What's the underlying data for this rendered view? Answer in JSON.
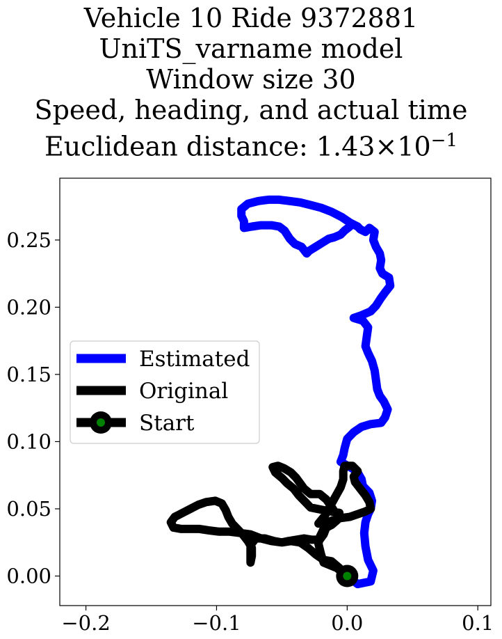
{
  "chart_data": {
    "type": "line",
    "title_lines": [
      "Vehicle 10 Ride 9372881",
      "UniTS_varname model",
      "Window size 30",
      "Speed, heading, and actual time"
    ],
    "title_metric_label": "Euclidean distance: ",
    "title_metric_mantissa": "1.43",
    "title_metric_times": "×",
    "title_metric_base": "10",
    "title_metric_exponent": "−1",
    "xlabel": "",
    "ylabel": "",
    "xlim": [
      -0.22,
      0.11
    ],
    "ylim": [
      -0.022,
      0.296
    ],
    "grid": false,
    "legend_position": "center-left",
    "x_ticks": [
      -0.2,
      -0.1,
      0.0,
      0.1
    ],
    "x_tick_labels": [
      "−0.2",
      "−0.1",
      "0.0",
      "0.1"
    ],
    "y_ticks": [
      0.0,
      0.05,
      0.1,
      0.15,
      0.2,
      0.25
    ],
    "y_tick_labels": [
      "0.00",
      "0.05",
      "0.10",
      "0.15",
      "0.20",
      "0.25"
    ],
    "series": [
      {
        "name": "Estimated",
        "color": "#0000ff",
        "points": [
          [
            0.0,
            0.0
          ],
          [
            0.008,
            -0.006
          ],
          [
            0.018,
            -0.004
          ],
          [
            0.02,
            0.004
          ],
          [
            0.016,
            0.012
          ],
          [
            0.014,
            0.022
          ],
          [
            0.013,
            0.032
          ],
          [
            0.014,
            0.04
          ],
          [
            0.016,
            0.046
          ],
          [
            0.018,
            0.05
          ],
          [
            0.019,
            0.056
          ],
          [
            0.017,
            0.062
          ],
          [
            0.012,
            0.067
          ],
          [
            0.011,
            0.072
          ],
          [
            0.008,
            0.077
          ],
          [
            0.004,
            0.08
          ],
          [
            -0.005,
            0.085
          ],
          [
            -0.003,
            0.09
          ],
          [
            -0.002,
            0.095
          ],
          [
            0.0,
            0.102
          ],
          [
            0.005,
            0.107
          ],
          [
            0.011,
            0.111
          ],
          [
            0.018,
            0.113
          ],
          [
            0.026,
            0.114
          ],
          [
            0.029,
            0.118
          ],
          [
            0.031,
            0.124
          ],
          [
            0.028,
            0.13
          ],
          [
            0.025,
            0.134
          ],
          [
            0.023,
            0.139
          ],
          [
            0.022,
            0.146
          ],
          [
            0.021,
            0.153
          ],
          [
            0.019,
            0.16
          ],
          [
            0.016,
            0.166
          ],
          [
            0.014,
            0.171
          ],
          [
            0.015,
            0.178
          ],
          [
            0.016,
            0.185
          ],
          [
            0.012,
            0.19
          ],
          [
            0.005,
            0.192
          ],
          [
            0.011,
            0.194
          ],
          [
            0.018,
            0.197
          ],
          [
            0.022,
            0.201
          ],
          [
            0.026,
            0.207
          ],
          [
            0.029,
            0.211
          ],
          [
            0.033,
            0.216
          ],
          [
            0.032,
            0.222
          ],
          [
            0.027,
            0.225
          ],
          [
            0.025,
            0.229
          ],
          [
            0.026,
            0.235
          ],
          [
            0.025,
            0.24
          ],
          [
            0.022,
            0.245
          ],
          [
            0.02,
            0.25
          ],
          [
            0.021,
            0.256
          ],
          [
            0.017,
            0.259
          ],
          [
            0.014,
            0.256
          ],
          [
            0.01,
            0.258
          ],
          [
            0.008,
            0.26
          ],
          [
            0.002,
            0.263
          ],
          [
            -0.004,
            0.267
          ],
          [
            -0.012,
            0.271
          ],
          [
            -0.02,
            0.274
          ],
          [
            -0.028,
            0.276
          ],
          [
            -0.036,
            0.278
          ],
          [
            -0.044,
            0.279
          ],
          [
            -0.052,
            0.28
          ],
          [
            -0.06,
            0.28
          ],
          [
            -0.068,
            0.279
          ],
          [
            -0.076,
            0.277
          ],
          [
            -0.081,
            0.273
          ],
          [
            -0.081,
            0.268
          ],
          [
            -0.079,
            0.264
          ],
          [
            -0.079,
            0.259
          ],
          [
            -0.073,
            0.26
          ],
          [
            -0.066,
            0.261
          ],
          [
            -0.058,
            0.261
          ],
          [
            -0.052,
            0.26
          ],
          [
            -0.048,
            0.257
          ],
          [
            -0.044,
            0.251
          ],
          [
            -0.04,
            0.247
          ],
          [
            -0.035,
            0.245
          ],
          [
            -0.031,
            0.24
          ],
          [
            -0.029,
            0.242
          ],
          [
            -0.024,
            0.245
          ],
          [
            -0.019,
            0.248
          ],
          [
            -0.014,
            0.251
          ],
          [
            -0.01,
            0.252
          ],
          [
            -0.005,
            0.254
          ],
          [
            -0.002,
            0.257
          ],
          [
            0.002,
            0.26
          ]
        ]
      },
      {
        "name": "Original",
        "color": "#000000",
        "points": [
          [
            0.0,
            0.0
          ],
          [
            -0.006,
            0.006
          ],
          [
            -0.012,
            0.011
          ],
          [
            -0.018,
            0.012
          ],
          [
            -0.024,
            0.016
          ],
          [
            -0.03,
            0.021
          ],
          [
            -0.036,
            0.025
          ],
          [
            -0.043,
            0.026
          ],
          [
            -0.05,
            0.025
          ],
          [
            -0.058,
            0.026
          ],
          [
            -0.066,
            0.028
          ],
          [
            -0.074,
            0.031
          ],
          [
            -0.082,
            0.032
          ],
          [
            -0.09,
            0.033
          ],
          [
            -0.098,
            0.033
          ],
          [
            -0.106,
            0.034
          ],
          [
            -0.113,
            0.035
          ],
          [
            -0.12,
            0.035
          ],
          [
            -0.127,
            0.035
          ],
          [
            -0.133,
            0.036
          ],
          [
            -0.135,
            0.04
          ],
          [
            -0.132,
            0.044
          ],
          [
            -0.126,
            0.047
          ],
          [
            -0.12,
            0.05
          ],
          [
            -0.114,
            0.053
          ],
          [
            -0.108,
            0.055
          ],
          [
            -0.101,
            0.056
          ],
          [
            -0.096,
            0.054
          ],
          [
            -0.093,
            0.049
          ],
          [
            -0.091,
            0.044
          ],
          [
            -0.088,
            0.039
          ],
          [
            -0.084,
            0.035
          ],
          [
            -0.08,
            0.031
          ],
          [
            -0.076,
            0.026
          ],
          [
            -0.073,
            0.021
          ],
          [
            -0.073,
            0.015
          ],
          [
            -0.074,
            0.01
          ],
          [
            -0.074,
            0.016
          ],
          [
            -0.074,
            0.023
          ],
          [
            -0.07,
            0.028
          ],
          [
            -0.063,
            0.028
          ],
          [
            -0.056,
            0.026
          ],
          [
            -0.05,
            0.025
          ],
          [
            -0.045,
            0.026
          ],
          [
            -0.039,
            0.027
          ],
          [
            -0.033,
            0.028
          ],
          [
            -0.027,
            0.027
          ],
          [
            -0.021,
            0.027
          ],
          [
            -0.018,
            0.031
          ],
          [
            -0.016,
            0.036
          ],
          [
            -0.012,
            0.04
          ],
          [
            -0.008,
            0.043
          ],
          [
            -0.006,
            0.047
          ],
          [
            -0.012,
            0.048
          ],
          [
            -0.018,
            0.049
          ],
          [
            -0.023,
            0.05
          ],
          [
            -0.028,
            0.051
          ],
          [
            -0.032,
            0.055
          ],
          [
            -0.037,
            0.06
          ],
          [
            -0.041,
            0.065
          ],
          [
            -0.046,
            0.069
          ],
          [
            -0.05,
            0.073
          ],
          [
            -0.055,
            0.077
          ],
          [
            -0.057,
            0.081
          ],
          [
            -0.053,
            0.082
          ],
          [
            -0.048,
            0.08
          ],
          [
            -0.043,
            0.077
          ],
          [
            -0.039,
            0.073
          ],
          [
            -0.036,
            0.069
          ],
          [
            -0.033,
            0.065
          ],
          [
            -0.028,
            0.061
          ],
          [
            -0.021,
            0.061
          ],
          [
            -0.016,
            0.057
          ],
          [
            -0.013,
            0.053
          ],
          [
            -0.009,
            0.047
          ],
          [
            -0.007,
            0.043
          ],
          [
            -0.015,
            0.04
          ],
          [
            -0.022,
            0.039
          ],
          [
            -0.017,
            0.045
          ],
          [
            -0.013,
            0.052
          ],
          [
            -0.009,
            0.059
          ],
          [
            -0.005,
            0.066
          ],
          [
            -0.003,
            0.072
          ],
          [
            -0.003,
            0.078
          ],
          [
            -0.002,
            0.082
          ],
          [
            0.004,
            0.082
          ],
          [
            0.008,
            0.078
          ],
          [
            0.005,
            0.074
          ],
          [
            0.006,
            0.07
          ],
          [
            0.01,
            0.065
          ],
          [
            0.014,
            0.06
          ],
          [
            0.017,
            0.055
          ],
          [
            0.018,
            0.05
          ],
          [
            0.014,
            0.048
          ],
          [
            0.008,
            0.046
          ],
          [
            0.002,
            0.044
          ],
          [
            -0.006,
            0.043
          ],
          [
            -0.012,
            0.038
          ],
          [
            -0.018,
            0.035
          ],
          [
            -0.021,
            0.029
          ],
          [
            -0.022,
            0.024
          ],
          [
            -0.02,
            0.016
          ],
          [
            -0.018,
            0.01
          ],
          [
            -0.013,
            0.008
          ],
          [
            -0.008,
            0.006
          ],
          [
            -0.004,
            0.003
          ],
          [
            0.0,
            0.0
          ]
        ]
      }
    ],
    "start_point": {
      "name": "Start",
      "x": 0.0,
      "y": 0.0,
      "outer_color": "#000000",
      "inner_color": "#008000"
    },
    "legend": {
      "entries": [
        {
          "label": "Estimated",
          "color": "#0000ff",
          "marker": false
        },
        {
          "label": "Original",
          "color": "#000000",
          "marker": false
        },
        {
          "label": "Start",
          "color": "#000000",
          "marker": true,
          "marker_color": "#008000"
        }
      ]
    }
  }
}
